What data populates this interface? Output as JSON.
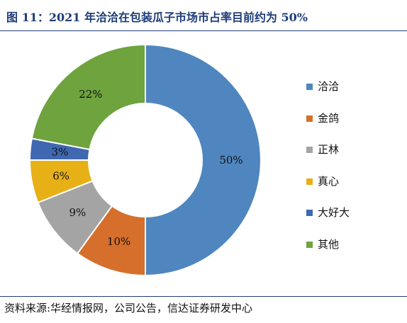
{
  "figure": {
    "title": "图 11：2021 年洽洽在包装瓜子市场市占率目前约为 50%",
    "source": "资料来源:华经情报网，公司公告，信达证券研发中心"
  },
  "chart_data": {
    "type": "pie",
    "donut": true,
    "legend_position": "right",
    "categories": [
      "洽洽",
      "金鸽",
      "正林",
      "真心",
      "大好大",
      "其他"
    ],
    "values": [
      50,
      10,
      9,
      6,
      3,
      22
    ],
    "value_labels": [
      "50%",
      "10%",
      "9%",
      "6%",
      "3%",
      "22%"
    ],
    "colors": [
      "#4f86bf",
      "#d66f2b",
      "#a4a4a4",
      "#e8b017",
      "#3f68b1",
      "#6ea33e"
    ],
    "unit": "%"
  }
}
